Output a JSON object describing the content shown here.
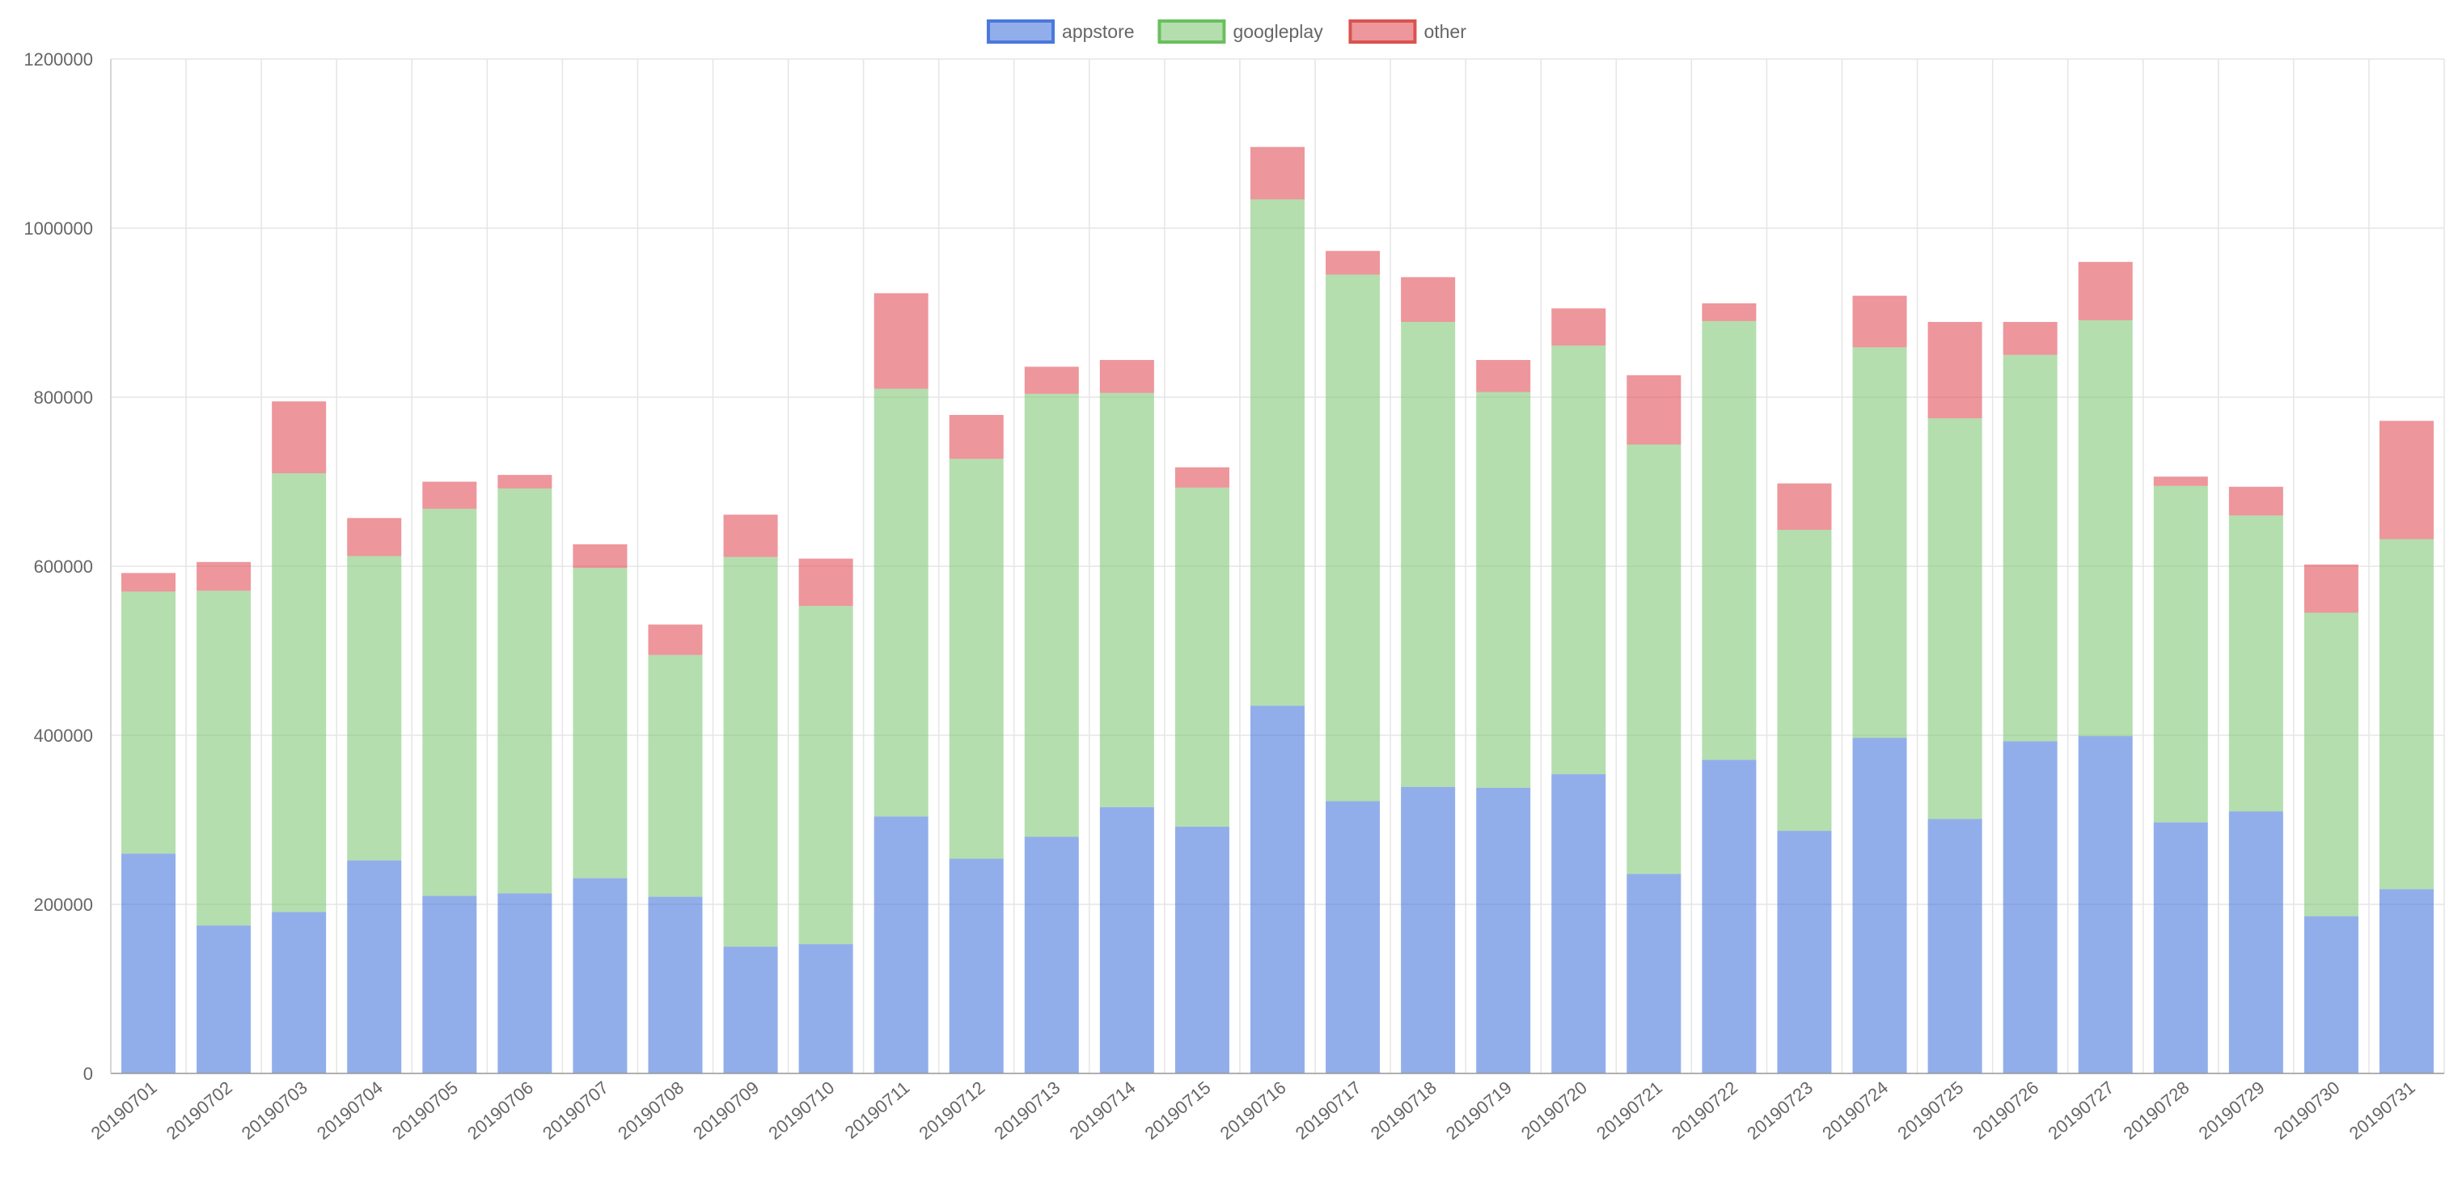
{
  "chart_data": {
    "type": "bar",
    "stacked": true,
    "categories": [
      "20190701",
      "20190702",
      "20190703",
      "20190704",
      "20190705",
      "20190706",
      "20190707",
      "20190708",
      "20190709",
      "20190710",
      "20190711",
      "20190712",
      "20190713",
      "20190714",
      "20190715",
      "20190716",
      "20190717",
      "20190718",
      "20190719",
      "20190720",
      "20190721",
      "20190722",
      "20190723",
      "20190724",
      "20190725",
      "20190726",
      "20190727",
      "20190728",
      "20190729",
      "20190730",
      "20190731"
    ],
    "series": [
      {
        "name": "appstore",
        "color": "#4a78dc",
        "fill": "rgba(74,120,220,0.6)",
        "values": [
          260000,
          175000,
          191000,
          252000,
          210000,
          213000,
          231000,
          209000,
          150000,
          153000,
          304000,
          254000,
          280000,
          315000,
          292000,
          435000,
          322000,
          339000,
          338000,
          354000,
          236000,
          371000,
          287000,
          397000,
          301000,
          393000,
          399000,
          297000,
          310000,
          186000,
          218000
        ]
      },
      {
        "name": "googleplay",
        "color": "#6abf5e",
        "fill": "rgba(130,200,120,0.6)",
        "values": [
          310000,
          396000,
          519000,
          360000,
          458000,
          479000,
          367000,
          286000,
          461000,
          400000,
          506000,
          473000,
          524000,
          490000,
          401000,
          599000,
          623000,
          550000,
          468000,
          507000,
          508000,
          519000,
          356000,
          462000,
          474000,
          457000,
          492000,
          398000,
          350000,
          359000,
          414000
        ]
      },
      {
        "name": "other",
        "color": "#d9534f",
        "fill": "rgba(225,80,90,0.6)",
        "values": [
          22000,
          34000,
          85000,
          45000,
          32000,
          16000,
          28000,
          36000,
          50000,
          56000,
          113000,
          52000,
          32000,
          39000,
          24000,
          62000,
          28000,
          53000,
          38000,
          44000,
          82000,
          21000,
          55000,
          61000,
          114000,
          39000,
          69000,
          11000,
          34000,
          57000,
          140000
        ]
      }
    ],
    "title": "",
    "xlabel": "",
    "ylabel": "",
    "ylim": [
      0,
      1200000
    ],
    "yticks": [
      "0",
      "200000",
      "400000",
      "600000",
      "800000",
      "1000000",
      "1200000"
    ],
    "grid": true,
    "legend_position": "top-center"
  }
}
